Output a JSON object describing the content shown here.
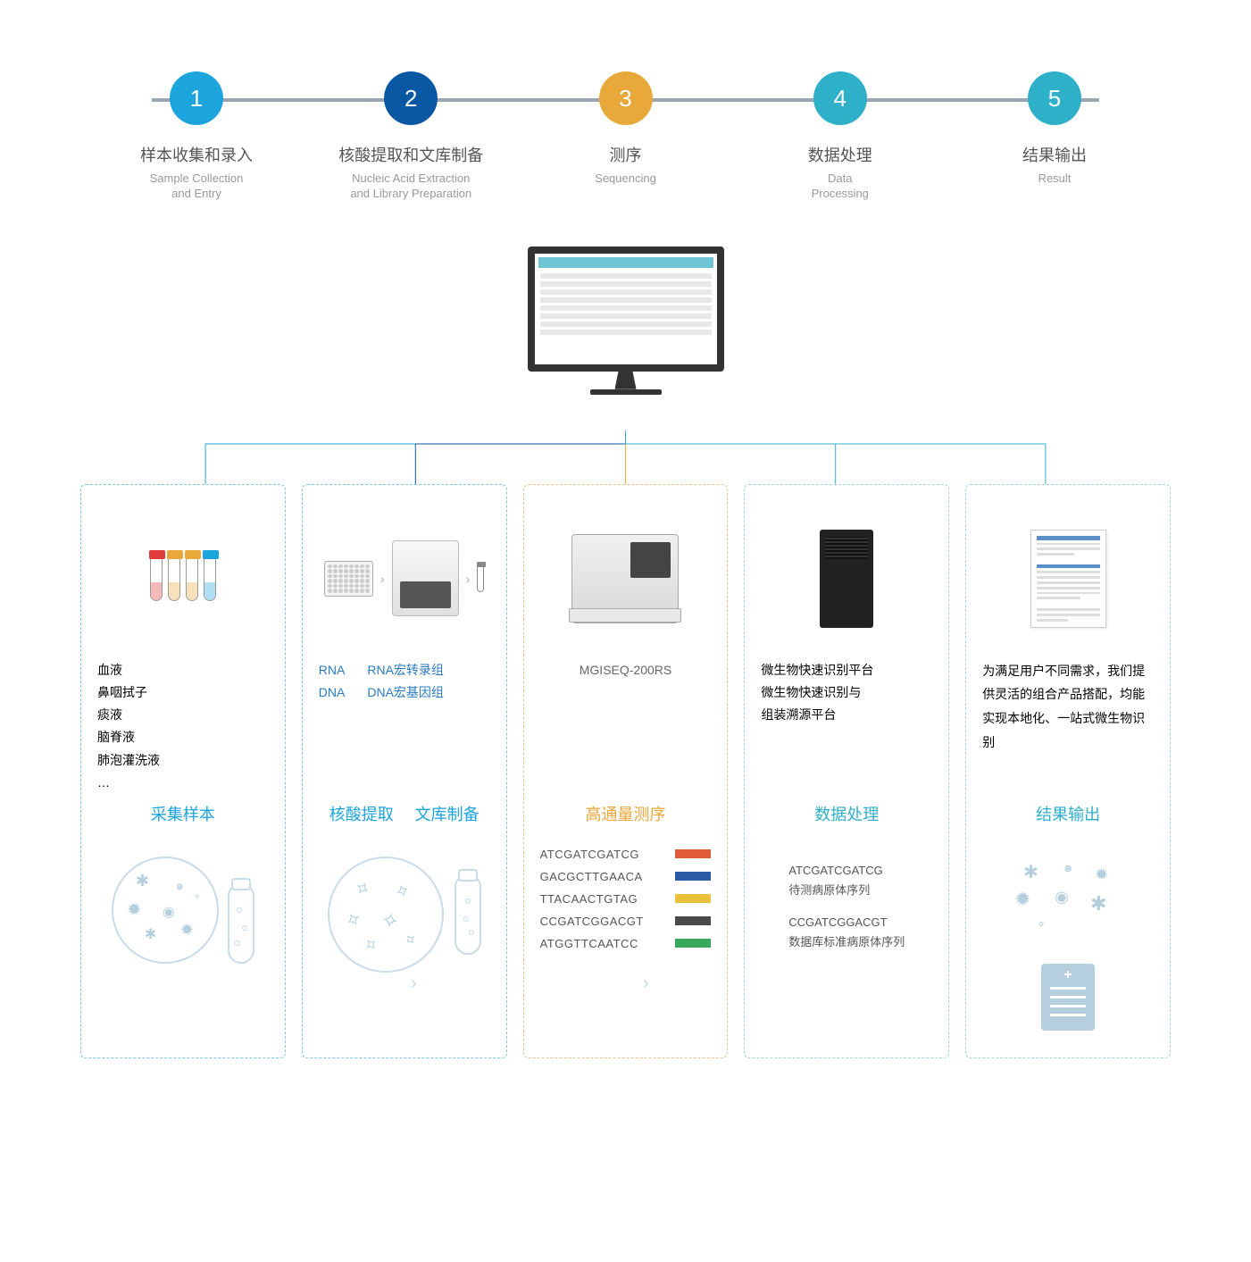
{
  "steps": [
    {
      "num": "1",
      "color": "#1ca4dd",
      "cn": "样本收集和录入",
      "en_l1": "Sample Collection",
      "en_l2": "and Entry"
    },
    {
      "num": "2",
      "color": "#0a58a3",
      "cn": "核酸提取和文库制备",
      "en_l1": "Nucleic Acid Extraction",
      "en_l2": "and Library Preparation"
    },
    {
      "num": "3",
      "color": "#e8a83a",
      "cn": "测序",
      "en_l1": "Sequencing",
      "en_l2": ""
    },
    {
      "num": "4",
      "color": "#2fb0c9",
      "cn": "数据处理",
      "en_l1": "Data",
      "en_l2": "Processing"
    },
    {
      "num": "5",
      "color": "#2fb0c9",
      "cn": "结果输出",
      "en_l1": "Result",
      "en_l2": ""
    }
  ],
  "step_line_color": "#9aa6b2",
  "connectors": {
    "colors": [
      "#1ca4dd",
      "#0a58a3",
      "#e8a83a",
      "#2fb0c9",
      "#2fb0c9"
    ]
  },
  "cards": [
    {
      "border": "#7fc6e0",
      "title": "采集样本",
      "title_color": "#1ca4dd",
      "desc_color": "#2a7bbf",
      "desc_lines": [
        "血液",
        "鼻咽拭子",
        "痰液",
        "脑脊液",
        "肺泡灌洗液",
        "…"
      ],
      "tube_caps": [
        "#e03a3a",
        "#e8a83a",
        "#e8a83a",
        "#1ca4dd"
      ]
    },
    {
      "border": "#7fc6e0",
      "title_left": "核酸提取",
      "title_right": "文库制备",
      "title_color": "#1ca4dd",
      "desc_color": "#2a7bbf",
      "col_left": [
        "RNA",
        "DNA"
      ],
      "col_right": [
        "RNA宏转录组",
        "DNA宏基因组"
      ]
    },
    {
      "border": "#e8c28a",
      "title": "高通量测序",
      "title_color": "#e8a83a",
      "device": "MGISEQ-200RS",
      "sequences": [
        {
          "seq": "ATCGATCGATCG",
          "color": "#e25b3a"
        },
        {
          "seq": "GACGCTTGAACA",
          "color": "#2a5ca3"
        },
        {
          "seq": "TTACAACTGTAG",
          "color": "#e8c23a"
        },
        {
          "seq": "CCGATCGGACGT",
          "color": "#4a4a4a"
        },
        {
          "seq": "ATGGTTCAATCC",
          "color": "#3aa85a"
        }
      ]
    },
    {
      "border": "#9ed4da",
      "title": "数据处理",
      "title_color": "#2fb0c9",
      "desc_color": "#2a7bbf",
      "desc_lines": [
        "微生物快速识别平台",
        "微生物快速识别与",
        "组装溯源平台"
      ],
      "dp_lines": [
        "ATCGATCGATCG",
        "待测病原体序列",
        "",
        "CCGATCGGACGT",
        "数据库标准病原体序列"
      ]
    },
    {
      "border": "#9ed4da",
      "title": "结果输出",
      "title_color": "#2fb0c9",
      "desc_color": "#2a7bbf",
      "desc_text": "为满足用户不同需求，我们提供灵活的组合产品搭配，均能实现本地化、一站式微生物识别"
    }
  ],
  "body_font": "Microsoft YaHei",
  "background": "#ffffff"
}
